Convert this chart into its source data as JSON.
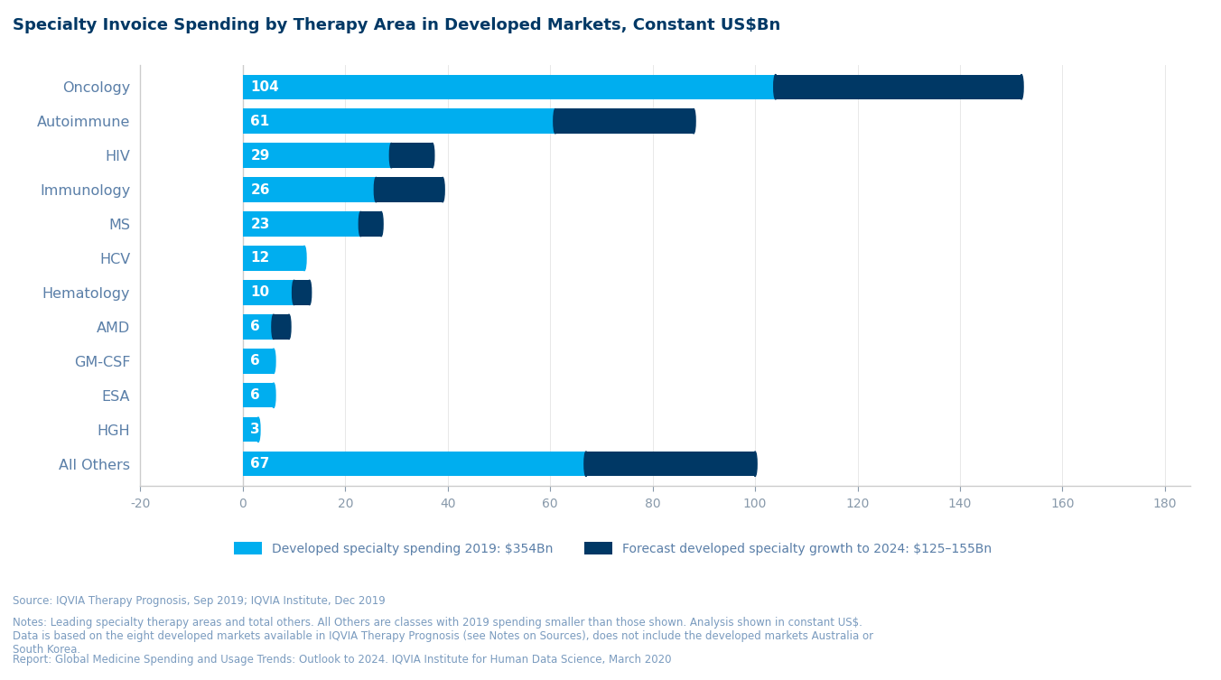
{
  "title": "Specialty Invoice Spending by Therapy Area in Developed Markets, Constant US$Bn",
  "categories": [
    "Oncology",
    "Autoimmune",
    "HIV",
    "Immunology",
    "MS",
    "HCV",
    "Hematology",
    "AMD",
    "GM-CSF",
    "ESA",
    "HGH",
    "All Others"
  ],
  "values_2019": [
    104,
    61,
    29,
    26,
    23,
    12,
    10,
    6,
    6,
    6,
    3,
    67
  ],
  "values_forecast": [
    48,
    27,
    8,
    13,
    4,
    0,
    3,
    3,
    0,
    0,
    0,
    33
  ],
  "color_2019": "#00AEEF",
  "color_forecast": "#003865",
  "xlim": [
    -20,
    185
  ],
  "xticks": [
    -20,
    0,
    20,
    40,
    60,
    80,
    100,
    120,
    140,
    160,
    180
  ],
  "bar_height": 0.72,
  "legend_label_1": "Developed specialty spending 2019: $354Bn",
  "legend_label_2": "Forecast developed specialty growth to 2024: $125–155Bn",
  "source_text": "Source: IQVIA Therapy Prognosis, Sep 2019; IQVIA Institute, Dec 2019",
  "notes_text": "Notes: Leading specialty therapy areas and total others. All Others are classes with 2019 spending smaller than those shown. Analysis shown in constant US$.\nData is based on the eight developed markets available in IQVIA Therapy Prognosis (see Notes on Sources), does not include the developed markets Australia or\nSouth Korea.",
  "report_text": "Report: Global Medicine Spending and Usage Trends: Outlook to 2024. IQVIA Institute for Human Data Science, March 2020",
  "title_color": "#003865",
  "label_color": "#5a7fa8",
  "tick_color": "#8899aa",
  "annotation_color": "#FFFFFF",
  "background_color": "#FFFFFF",
  "figsize": [
    13.52,
    7.53
  ],
  "dpi": 100
}
